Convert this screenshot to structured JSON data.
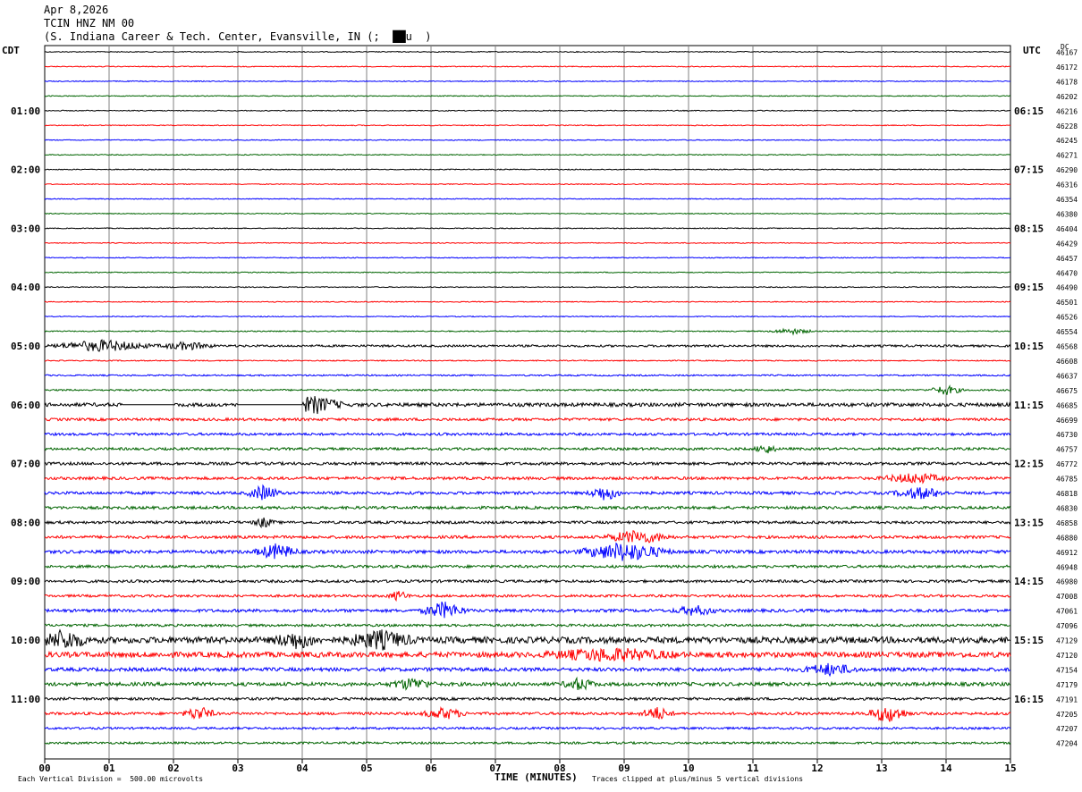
{
  "header": {
    "date": "Apr 8,2026",
    "station": "TCIN HNZ NM 00",
    "location": "(S. Indiana Career & Tech. Center, Evansville, IN (;  ██u  )"
  },
  "left_tz": "CDT",
  "right_tz": "UTC",
  "dc_label": "DC",
  "footer": {
    "scale": "Each Vertical Division =  500.00 microvolts",
    "xlabel": "TIME (MINUTES)",
    "clip_note": "Traces clipped at plus/minus 5 vertical divisions"
  },
  "colors": {
    "black": "#000000",
    "red": "#ff0000",
    "blue": "#0000ff",
    "green": "#006400",
    "grid": "#808080"
  },
  "chart_data": {
    "type": "line",
    "title": "TCIN HNZ NM 00",
    "xlabel": "TIME (MINUTES)",
    "xlim": [
      0,
      15
    ],
    "x_ticks": [
      "00",
      "01",
      "02",
      "03",
      "04",
      "05",
      "06",
      "07",
      "08",
      "09",
      "10",
      "11",
      "12",
      "13",
      "14",
      "15"
    ],
    "minutes_per_line": 15,
    "line_color_cycle": [
      "black",
      "red",
      "blue",
      "green"
    ],
    "left_hour_labels": [
      "01:00",
      "02:00",
      "03:00",
      "04:00",
      "05:00",
      "06:00",
      "07:00",
      "08:00",
      "09:00",
      "10:00",
      "11:00"
    ],
    "right_hour_labels": [
      "06:15",
      "07:15",
      "08:15",
      "09:15",
      "10:15",
      "11:15",
      "12:15",
      "13:15",
      "14:15",
      "15:15",
      "16:15"
    ],
    "dc_offsets": [
      46167,
      46172,
      46178,
      46202,
      46216,
      46228,
      46245,
      46271,
      46290,
      46316,
      46354,
      46380,
      46404,
      46429,
      46457,
      46470,
      46490,
      46501,
      46526,
      46554,
      46568,
      46608,
      46637,
      46675,
      46685,
      46699,
      46730,
      46757,
      46772,
      46785,
      46818,
      46830,
      46858,
      46880,
      46912,
      46948,
      46980,
      47008,
      47061,
      47096,
      47129,
      47120,
      47154,
      47179,
      47191,
      47205,
      47207,
      47204
    ],
    "noise_amplitude_levels": [
      0.5,
      0.5,
      0.5,
      0.5,
      0.5,
      0.5,
      0.5,
      0.5,
      0.5,
      0.5,
      0.5,
      0.5,
      0.5,
      0.5,
      0.5,
      0.5,
      0.5,
      0.5,
      0.5,
      0.6,
      1.2,
      0.6,
      0.8,
      0.9,
      2.0,
      1.5,
      1.4,
      1.4,
      1.6,
      1.6,
      1.6,
      1.6,
      1.5,
      1.6,
      1.8,
      1.5,
      1.5,
      1.4,
      1.7,
      1.4,
      3.5,
      3.0,
      2.0,
      2.0,
      1.5,
      1.5,
      1.2,
      1.2
    ],
    "events": [
      {
        "line": 20,
        "minute": 0.9,
        "amp": 6,
        "width": 0.9
      },
      {
        "line": 20,
        "minute": 2.2,
        "amp": 4,
        "width": 0.5
      },
      {
        "line": 23,
        "minute": 14.0,
        "amp": 5,
        "width": 0.3
      },
      {
        "line": 19,
        "minute": 11.6,
        "amp": 3,
        "width": 0.4
      },
      {
        "line": 24,
        "minute": 4.2,
        "amp": 9,
        "width": 0.5
      },
      {
        "line": 27,
        "minute": 11.2,
        "amp": 5,
        "width": 0.2
      },
      {
        "line": 29,
        "minute": 13.5,
        "amp": 5,
        "width": 0.6
      },
      {
        "line": 30,
        "minute": 3.4,
        "amp": 8,
        "width": 0.3
      },
      {
        "line": 30,
        "minute": 8.7,
        "amp": 8,
        "width": 0.3
      },
      {
        "line": 30,
        "minute": 13.6,
        "amp": 6,
        "width": 0.5
      },
      {
        "line": 32,
        "minute": 3.4,
        "amp": 5,
        "width": 0.2
      },
      {
        "line": 33,
        "minute": 9.2,
        "amp": 7,
        "width": 0.6
      },
      {
        "line": 34,
        "minute": 3.6,
        "amp": 8,
        "width": 0.4
      },
      {
        "line": 34,
        "minute": 9.0,
        "amp": 10,
        "width": 0.8
      },
      {
        "line": 37,
        "minute": 5.5,
        "amp": 5,
        "width": 0.2
      },
      {
        "line": 38,
        "minute": 6.2,
        "amp": 9,
        "width": 0.4
      },
      {
        "line": 38,
        "minute": 10.1,
        "amp": 5,
        "width": 0.4
      },
      {
        "line": 40,
        "minute": 0.3,
        "amp": 10,
        "width": 0.4
      },
      {
        "line": 40,
        "minute": 3.9,
        "amp": 8,
        "width": 0.4
      },
      {
        "line": 40,
        "minute": 5.2,
        "amp": 9,
        "width": 0.6
      },
      {
        "line": 41,
        "minute": 8.8,
        "amp": 6,
        "width": 1.2
      },
      {
        "line": 42,
        "minute": 12.2,
        "amp": 6,
        "width": 0.5
      },
      {
        "line": 43,
        "minute": 5.7,
        "amp": 6,
        "width": 0.4
      },
      {
        "line": 43,
        "minute": 8.3,
        "amp": 6,
        "width": 0.3
      },
      {
        "line": 45,
        "minute": 2.4,
        "amp": 7,
        "width": 0.3
      },
      {
        "line": 45,
        "minute": 6.2,
        "amp": 6,
        "width": 0.4
      },
      {
        "line": 45,
        "minute": 9.5,
        "amp": 7,
        "width": 0.3
      },
      {
        "line": 45,
        "minute": 13.1,
        "amp": 9,
        "width": 0.4
      }
    ],
    "gaps": [
      {
        "line": 24,
        "start": 1.2,
        "end": 2.0
      },
      {
        "line": 24,
        "start": 3.0,
        "end": 4.0
      }
    ]
  }
}
